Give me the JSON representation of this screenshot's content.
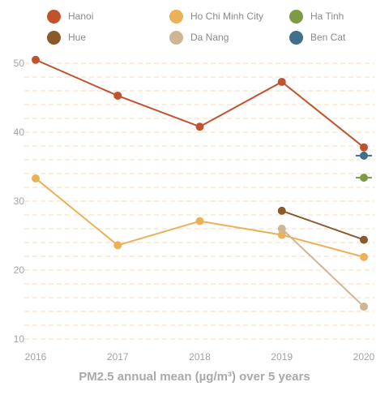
{
  "chart_data": {
    "type": "line",
    "title": "PM2.5 annual mean (µg/m³) over 5 years",
    "x": [
      "2016",
      "2017",
      "2018",
      "2019",
      "2020"
    ],
    "y_ticks": [
      "10",
      "20",
      "30",
      "40",
      "50"
    ],
    "ylim": [
      9,
      52
    ],
    "grid": "dashed horizontal",
    "legend_position": "top",
    "series": [
      {
        "name": "Hanoi",
        "color": "#c0522d",
        "values": [
          50.5,
          45.3,
          40.8,
          47.3,
          37.8
        ]
      },
      {
        "name": "Ho Chi Minh City",
        "color": "#eab159",
        "values": [
          33.3,
          23.6,
          27.1,
          25.1,
          21.9
        ]
      },
      {
        "name": "Ha Tinh",
        "color": "#7e9a44",
        "values": [
          null,
          null,
          null,
          null,
          33.4
        ]
      },
      {
        "name": "Hue",
        "color": "#8a5a2b",
        "values": [
          null,
          null,
          null,
          28.6,
          24.4
        ]
      },
      {
        "name": "Da Nang",
        "color": "#cfb592",
        "values": [
          null,
          null,
          null,
          26.0,
          14.7
        ]
      },
      {
        "name": "Ben Cat",
        "color": "#3f6f8a",
        "values": [
          null,
          null,
          null,
          null,
          36.6
        ]
      }
    ]
  }
}
